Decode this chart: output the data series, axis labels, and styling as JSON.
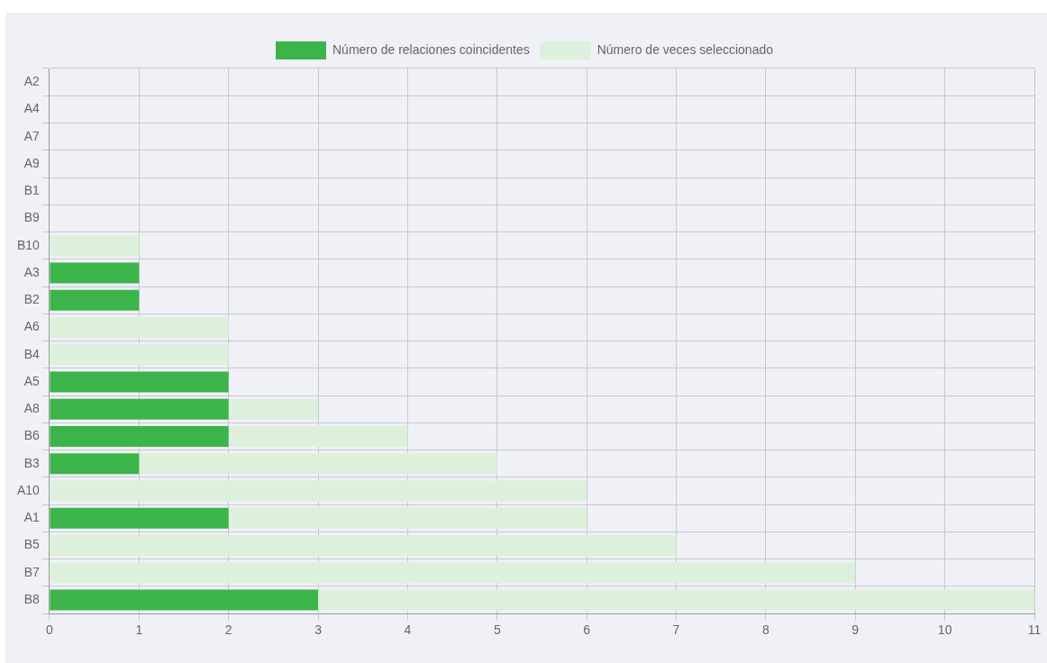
{
  "chart_data": {
    "type": "bar",
    "orientation": "horizontal",
    "stacked": true,
    "categories": [
      "A2",
      "A4",
      "A7",
      "A9",
      "B1",
      "B9",
      "B10",
      "A3",
      "B2",
      "A6",
      "B4",
      "A5",
      "A8",
      "B6",
      "B3",
      "A10",
      "A1",
      "B5",
      "B7",
      "B8"
    ],
    "series": [
      {
        "name": "Número de relaciones coincidentes",
        "color": "#3bb44a",
        "values": [
          0,
          0,
          0,
          0,
          0,
          0,
          0,
          1,
          1,
          0,
          0,
          2,
          2,
          2,
          1,
          0,
          2,
          0,
          0,
          3
        ]
      },
      {
        "name": "Número de veces seleccionado",
        "color": "#dcf0dc",
        "values": [
          0,
          0,
          0,
          0,
          0,
          0,
          1,
          0,
          0,
          2,
          2,
          0,
          1,
          2,
          4,
          6,
          4,
          7,
          9,
          8
        ]
      }
    ],
    "xlim": [
      0,
      11
    ],
    "xticks": [
      0,
      1,
      2,
      3,
      4,
      5,
      6,
      7,
      8,
      9,
      10,
      11
    ],
    "grid": true,
    "legend": "top"
  }
}
